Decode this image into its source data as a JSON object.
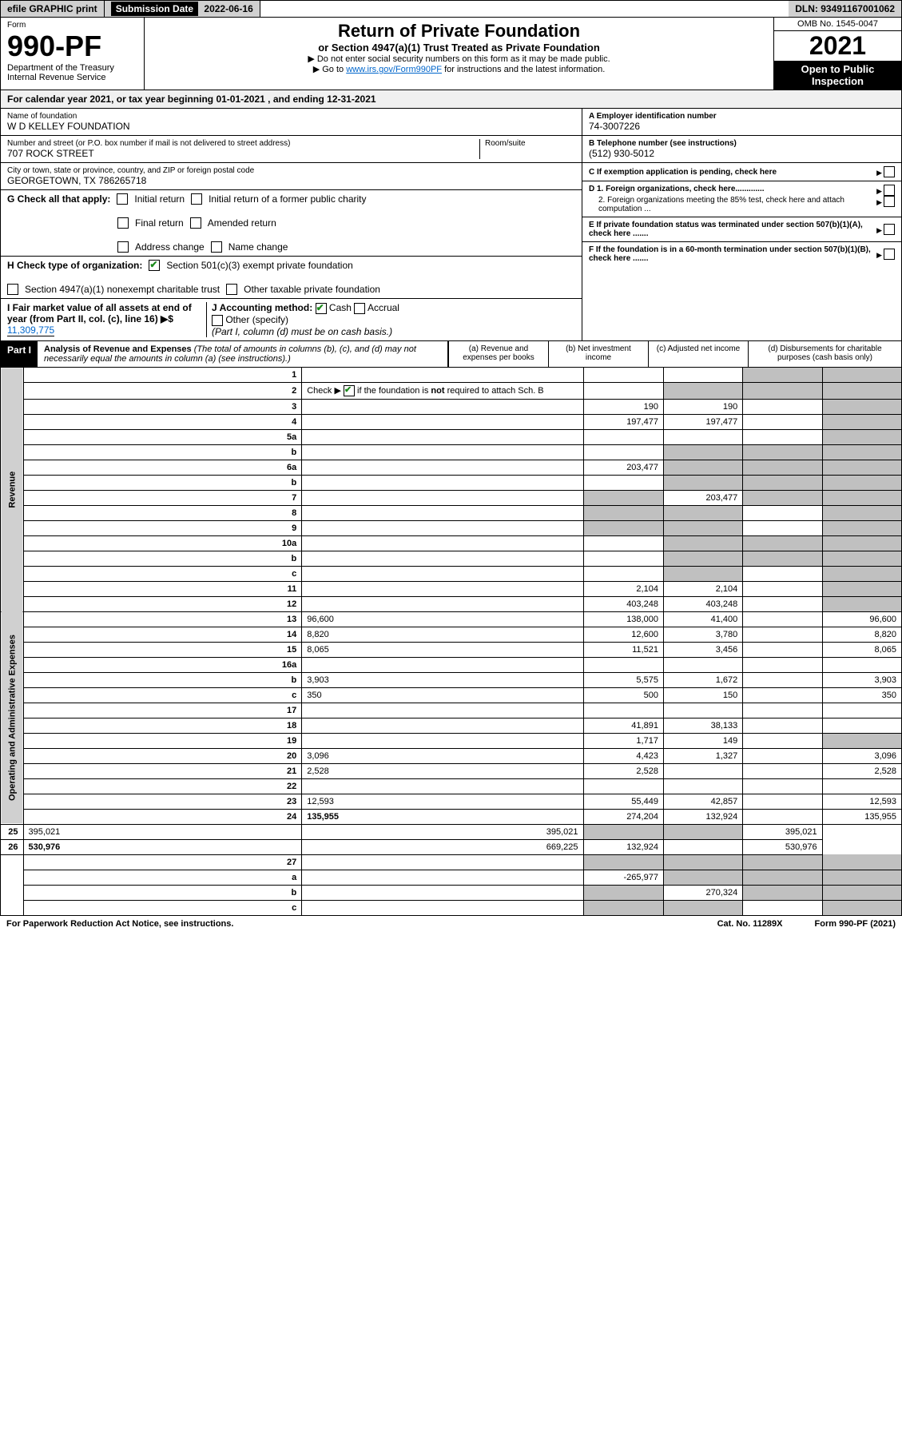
{
  "topbar": {
    "efile": "efile GRAPHIC print",
    "submission_label": "Submission Date",
    "submission_date": "2022-06-16",
    "dln": "DLN: 93491167001062"
  },
  "header": {
    "form_label": "Form",
    "form_number": "990-PF",
    "dept1": "Department of the Treasury",
    "dept2": "Internal Revenue Service",
    "title": "Return of Private Foundation",
    "subtitle": "or Section 4947(a)(1) Trust Treated as Private Foundation",
    "instr1": "▶ Do not enter social security numbers on this form as it may be made public.",
    "instr2_pre": "▶ Go to ",
    "instr2_link": "www.irs.gov/Form990PF",
    "instr2_post": " for instructions and the latest information.",
    "omb": "OMB No. 1545-0047",
    "year": "2021",
    "open": "Open to Public Inspection"
  },
  "calyear": "For calendar year 2021, or tax year beginning 01-01-2021                          , and ending 12-31-2021",
  "foundation": {
    "name_label": "Name of foundation",
    "name": "W D KELLEY FOUNDATION",
    "addr_label": "Number and street (or P.O. box number if mail is not delivered to street address)",
    "addr": "707 ROCK STREET",
    "room_label": "Room/suite",
    "city_label": "City or town, state or province, country, and ZIP or foreign postal code",
    "city": "GEORGETOWN, TX  786265718",
    "ein_label": "A Employer identification number",
    "ein": "74-3007226",
    "phone_label": "B Telephone number (see instructions)",
    "phone": "(512) 930-5012",
    "c_label": "C If exemption application is pending, check here",
    "d1": "D 1. Foreign organizations, check here.............",
    "d2": "2. Foreign organizations meeting the 85% test, check here and attach computation ...",
    "e_label": "E  If private foundation status was terminated under section 507(b)(1)(A), check here .......",
    "f_label": "F  If the foundation is in a 60-month termination under section 507(b)(1)(B), check here .......",
    "g_label": "G Check all that apply:",
    "g_opts": [
      "Initial return",
      "Initial return of a former public charity",
      "Final return",
      "Amended return",
      "Address change",
      "Name change"
    ],
    "h_label": "H Check type of organization:",
    "h1": "Section 501(c)(3) exempt private foundation",
    "h2": "Section 4947(a)(1) nonexempt charitable trust",
    "h3": "Other taxable private foundation",
    "i_label": "I Fair market value of all assets at end of year (from Part II, col. (c), line 16) ▶$",
    "i_val": "11,309,775",
    "j_label": "J Accounting method:",
    "j_cash": "Cash",
    "j_accrual": "Accrual",
    "j_other": "Other (specify)",
    "j_note": "(Part I, column (d) must be on cash basis.)"
  },
  "part1": {
    "tag": "Part I",
    "title": "Analysis of Revenue and Expenses",
    "title_note": "(The total of amounts in columns (b), (c), and (d) may not necessarily equal the amounts in column (a) (see instructions).)",
    "col_a": "(a)    Revenue and expenses per books",
    "col_b": "(b)    Net investment income",
    "col_c": "(c)    Adjusted net income",
    "col_d": "(d)    Disbursements for charitable purposes (cash basis only)"
  },
  "sidelabels": {
    "revenue": "Revenue",
    "expenses": "Operating and Administrative Expenses"
  },
  "rows": [
    {
      "n": "1",
      "d": "",
      "a": "",
      "b": "",
      "c": "",
      "cs": true,
      "ds": true
    },
    {
      "n": "2",
      "d": "",
      "a": "",
      "b": "",
      "c": "",
      "bs": true,
      "cs": true,
      "ds": true,
      "hascheck": true
    },
    {
      "n": "3",
      "d": "",
      "a": "190",
      "b": "190",
      "c": "",
      "ds": true
    },
    {
      "n": "4",
      "d": "",
      "a": "197,477",
      "b": "197,477",
      "c": "",
      "ds": true
    },
    {
      "n": "5a",
      "d": "",
      "a": "",
      "b": "",
      "c": "",
      "ds": true
    },
    {
      "n": "b",
      "d": "",
      "a": "",
      "b": "",
      "c": "",
      "bs": true,
      "cs": true,
      "ds": true
    },
    {
      "n": "6a",
      "d": "",
      "a": "203,477",
      "b": "",
      "c": "",
      "bs": true,
      "cs": true,
      "ds": true
    },
    {
      "n": "b",
      "d": "",
      "a": "",
      "b": "",
      "c": "",
      "bs": true,
      "cs": true,
      "ds": true
    },
    {
      "n": "7",
      "d": "",
      "a": "",
      "b": "203,477",
      "c": "",
      "as": true,
      "cs": true,
      "ds": true
    },
    {
      "n": "8",
      "d": "",
      "a": "",
      "b": "",
      "c": "",
      "as": true,
      "bs": true,
      "ds": true
    },
    {
      "n": "9",
      "d": "",
      "a": "",
      "b": "",
      "c": "",
      "as": true,
      "bs": true,
      "ds": true
    },
    {
      "n": "10a",
      "d": "",
      "a": "",
      "b": "",
      "c": "",
      "bs": true,
      "cs": true,
      "ds": true
    },
    {
      "n": "b",
      "d": "",
      "a": "",
      "b": "",
      "c": "",
      "bs": true,
      "cs": true,
      "ds": true
    },
    {
      "n": "c",
      "d": "",
      "a": "",
      "b": "",
      "c": "",
      "bs": true,
      "ds": true
    },
    {
      "n": "11",
      "d": "",
      "a": "2,104",
      "b": "2,104",
      "c": "",
      "ds": true
    },
    {
      "n": "12",
      "d": "",
      "a": "403,248",
      "b": "403,248",
      "c": "",
      "ds": true,
      "bold": true
    },
    {
      "n": "13",
      "d": "96,600",
      "a": "138,000",
      "b": "41,400",
      "c": "",
      "sec": "exp"
    },
    {
      "n": "14",
      "d": "8,820",
      "a": "12,600",
      "b": "3,780",
      "c": ""
    },
    {
      "n": "15",
      "d": "8,065",
      "a": "11,521",
      "b": "3,456",
      "c": ""
    },
    {
      "n": "16a",
      "d": "",
      "a": "",
      "b": "",
      "c": ""
    },
    {
      "n": "b",
      "d": "3,903",
      "a": "5,575",
      "b": "1,672",
      "c": ""
    },
    {
      "n": "c",
      "d": "350",
      "a": "500",
      "b": "150",
      "c": ""
    },
    {
      "n": "17",
      "d": "",
      "a": "",
      "b": "",
      "c": ""
    },
    {
      "n": "18",
      "d": "",
      "a": "41,891",
      "b": "38,133",
      "c": ""
    },
    {
      "n": "19",
      "d": "",
      "a": "1,717",
      "b": "149",
      "c": "",
      "ds": true
    },
    {
      "n": "20",
      "d": "3,096",
      "a": "4,423",
      "b": "1,327",
      "c": ""
    },
    {
      "n": "21",
      "d": "2,528",
      "a": "2,528",
      "b": "",
      "c": ""
    },
    {
      "n": "22",
      "d": "",
      "a": "",
      "b": "",
      "c": ""
    },
    {
      "n": "23",
      "d": "12,593",
      "a": "55,449",
      "b": "42,857",
      "c": ""
    },
    {
      "n": "24",
      "d": "135,955",
      "a": "274,204",
      "b": "132,924",
      "c": "",
      "bold": true
    },
    {
      "n": "25",
      "d": "395,021",
      "a": "395,021",
      "b": "",
      "c": "",
      "bs": true,
      "cs": true
    },
    {
      "n": "26",
      "d": "530,976",
      "a": "669,225",
      "b": "132,924",
      "c": "",
      "bold": true
    },
    {
      "n": "27",
      "d": "",
      "a": "",
      "b": "",
      "c": "",
      "as": true,
      "bs": true,
      "cs": true,
      "ds": true,
      "sec": "final"
    },
    {
      "n": "a",
      "d": "",
      "a": "-265,977",
      "b": "",
      "c": "",
      "bs": true,
      "cs": true,
      "ds": true,
      "bold": true
    },
    {
      "n": "b",
      "d": "",
      "a": "",
      "b": "270,324",
      "c": "",
      "as": true,
      "cs": true,
      "ds": true,
      "bold": true
    },
    {
      "n": "c",
      "d": "",
      "a": "",
      "b": "",
      "c": "",
      "as": true,
      "bs": true,
      "ds": true,
      "bold": true
    }
  ],
  "footer": {
    "left": "For Paperwork Reduction Act Notice, see instructions.",
    "mid": "Cat. No. 11289X",
    "right": "Form 990-PF (2021)"
  }
}
